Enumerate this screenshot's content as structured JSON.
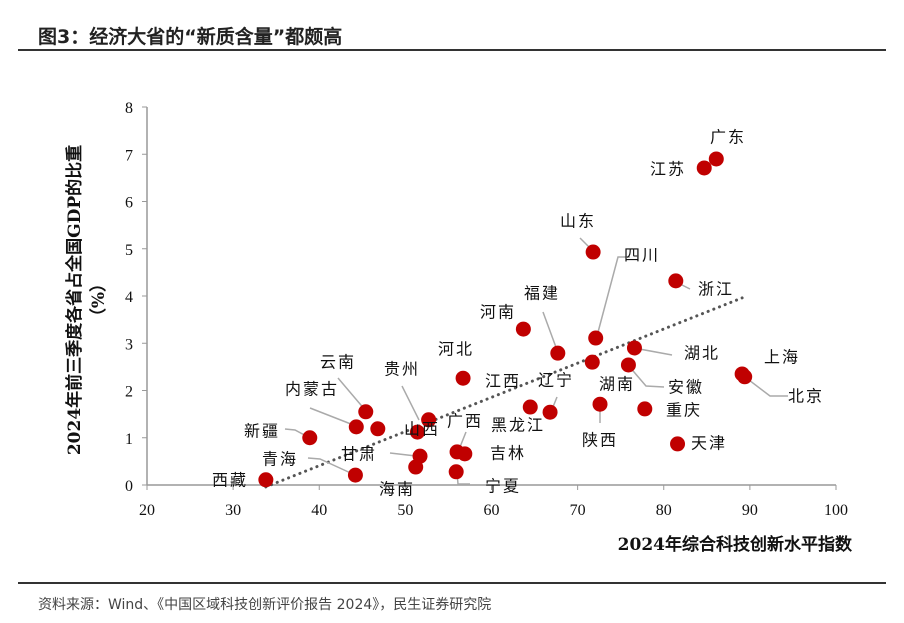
{
  "title": "图3：经济大省的“新质含量”都颇高",
  "source": "资料来源：Wind、《中国区域科技创新评价报告 2024》，民生证券研究院",
  "colors": {
    "point": "#c00000",
    "trend": "#555555",
    "axis": "#999999"
  },
  "chart_data": {
    "type": "scatter",
    "xlabel": "2024年综合科技创新水平指数",
    "ylabel": "2024年前三季度各省占全国GDP的比重",
    "ylabel_unit": "（%）",
    "xlim": [
      20,
      100
    ],
    "ylim": [
      0,
      8
    ],
    "xticks": [
      "20",
      "30",
      "40",
      "50",
      "60",
      "70",
      "80",
      "90",
      "100"
    ],
    "yticks": [
      "0",
      "1",
      "2",
      "3",
      "4",
      "5",
      "6",
      "7",
      "8"
    ],
    "grid": false,
    "trendline": {
      "style": "dotted",
      "from": [
        33.8,
        -0.04
      ],
      "to": [
        89.1,
        3.96
      ]
    },
    "points": [
      {
        "name": "广东",
        "x": 86.1,
        "y": 6.9
      },
      {
        "name": "江苏",
        "x": 84.7,
        "y": 6.71
      },
      {
        "name": "山东",
        "x": 71.8,
        "y": 4.93
      },
      {
        "name": "浙江",
        "x": 81.4,
        "y": 4.32
      },
      {
        "name": "四川",
        "x": 72.1,
        "y": 3.11
      },
      {
        "name": "河南",
        "x": 63.7,
        "y": 3.3
      },
      {
        "name": "福建",
        "x": 67.7,
        "y": 2.79
      },
      {
        "name": "湖北",
        "x": 76.6,
        "y": 2.9
      },
      {
        "name": "湖南",
        "x": 71.7,
        "y": 2.6
      },
      {
        "name": "安徽",
        "x": 75.9,
        "y": 2.54
      },
      {
        "name": "上海",
        "x": 89.1,
        "y": 2.35
      },
      {
        "name": "北京",
        "x": 89.4,
        "y": 2.29
      },
      {
        "name": "重庆",
        "x": 77.8,
        "y": 1.61
      },
      {
        "name": "天津",
        "x": 81.6,
        "y": 0.87
      },
      {
        "name": "陕西",
        "x": 72.6,
        "y": 1.71
      },
      {
        "name": "江西",
        "x": 64.5,
        "y": 1.65
      },
      {
        "name": "辽宁",
        "x": 66.8,
        "y": 1.54
      },
      {
        "name": "黑龙江",
        "x": 46.8,
        "y": 1.19
      },
      {
        "name": "吉林",
        "x": 56.9,
        "y": 0.66
      },
      {
        "name": "宁夏",
        "x": 55.9,
        "y": 0.28
      },
      {
        "name": "河北",
        "x": 56.7,
        "y": 2.26
      },
      {
        "name": "云南",
        "x": 45.4,
        "y": 1.55
      },
      {
        "name": "内蒙古",
        "x": 44.3,
        "y": 1.23
      },
      {
        "name": "贵州",
        "x": 52.7,
        "y": 1.38
      },
      {
        "name": "山西",
        "x": 51.4,
        "y": 1.12
      },
      {
        "name": "广西",
        "x": 56.0,
        "y": 0.7
      },
      {
        "name": "甘肃",
        "x": 51.7,
        "y": 0.61
      },
      {
        "name": "海南",
        "x": 51.2,
        "y": 0.38
      },
      {
        "name": "新疆",
        "x": 38.9,
        "y": 1.0
      },
      {
        "name": "青海",
        "x": 44.2,
        "y": 0.21
      },
      {
        "name": "西藏",
        "x": 33.8,
        "y": 0.11
      }
    ]
  }
}
